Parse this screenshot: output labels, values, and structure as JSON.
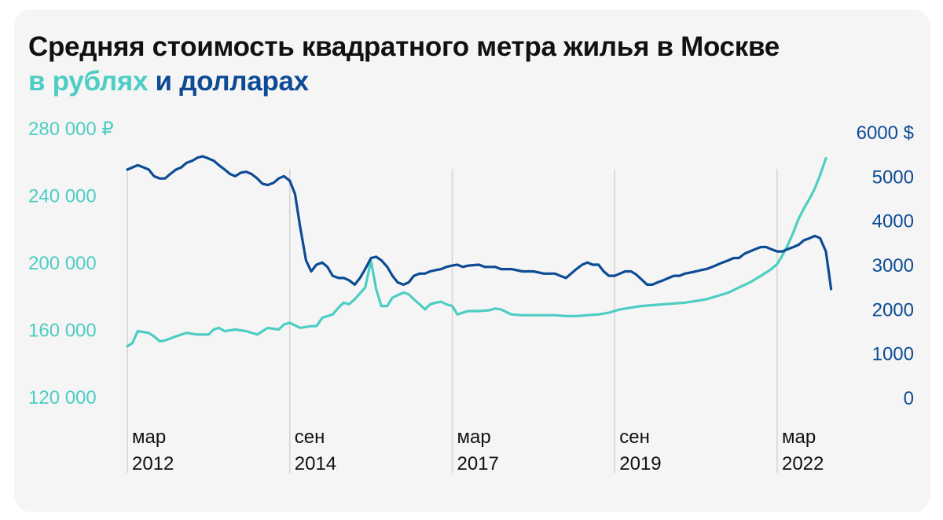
{
  "chart_data": {
    "type": "line",
    "title": "Средняя стоимость квадратного метра жилья в Москве",
    "subtitle": {
      "prefix": "в",
      "rub": "рублях",
      "and": "и",
      "usd": "долларах"
    },
    "xlabel": "",
    "ylabel_left": "",
    "ylabel_right": "",
    "x_ticks": [
      {
        "line1": "мар",
        "line2": "2012",
        "t": 2012.17
      },
      {
        "line1": "сен",
        "line2": "2014",
        "t": 2014.67
      },
      {
        "line1": "мар",
        "line2": "2017",
        "t": 2017.17
      },
      {
        "line1": "сен",
        "line2": "2019",
        "t": 2019.67
      },
      {
        "line1": "мар",
        "line2": "2022",
        "t": 2022.17
      }
    ],
    "y_left": {
      "ylim": [
        120000,
        280000
      ],
      "ticks": [
        {
          "value": 280000,
          "label": "280 000 ₽"
        },
        {
          "value": 240000,
          "label": "240 000"
        },
        {
          "value": 200000,
          "label": "200 000"
        },
        {
          "value": 160000,
          "label": "160 000"
        },
        {
          "value": 120000,
          "label": "120 000"
        }
      ]
    },
    "y_right": {
      "ylim": [
        0,
        6000
      ],
      "ticks": [
        {
          "value": 6000,
          "label": "6000 $"
        },
        {
          "value": 5000,
          "label": "5000"
        },
        {
          "value": 4000,
          "label": "4000"
        },
        {
          "value": 3000,
          "label": "3000"
        },
        {
          "value": 2000,
          "label": "2000"
        },
        {
          "value": 1000,
          "label": "1000"
        },
        {
          "value": 0,
          "label": "0"
        }
      ]
    },
    "grid": "vertical",
    "colors": {
      "rub": "#4ecdc4",
      "usd": "#0d4b94"
    },
    "series": [
      {
        "name": "рубли",
        "axis": "left",
        "points": [
          [
            2012.17,
            150000
          ],
          [
            2012.25,
            152000
          ],
          [
            2012.33,
            159000
          ],
          [
            2012.5,
            158000
          ],
          [
            2012.58,
            156000
          ],
          [
            2012.67,
            153000
          ],
          [
            2012.75,
            153500
          ],
          [
            2012.92,
            156000
          ],
          [
            2013.08,
            158000
          ],
          [
            2013.25,
            157000
          ],
          [
            2013.42,
            157000
          ],
          [
            2013.5,
            160000
          ],
          [
            2013.58,
            161000
          ],
          [
            2013.67,
            159000
          ],
          [
            2013.83,
            160000
          ],
          [
            2014.0,
            159000
          ],
          [
            2014.17,
            157000
          ],
          [
            2014.33,
            161000
          ],
          [
            2014.5,
            160000
          ],
          [
            2014.58,
            163000
          ],
          [
            2014.67,
            164000
          ],
          [
            2014.83,
            161000
          ],
          [
            2015.0,
            162000
          ],
          [
            2015.08,
            162000
          ],
          [
            2015.17,
            167000
          ],
          [
            2015.33,
            169000
          ],
          [
            2015.42,
            173000
          ],
          [
            2015.5,
            176000
          ],
          [
            2015.58,
            175000
          ],
          [
            2015.67,
            178000
          ],
          [
            2015.83,
            185000
          ],
          [
            2015.92,
            201000
          ],
          [
            2016.0,
            184000
          ],
          [
            2016.08,
            174000
          ],
          [
            2016.17,
            174000
          ],
          [
            2016.25,
            179000
          ],
          [
            2016.42,
            182000
          ],
          [
            2016.5,
            181000
          ],
          [
            2016.58,
            178000
          ],
          [
            2016.67,
            175000
          ],
          [
            2016.75,
            172000
          ],
          [
            2016.83,
            175000
          ],
          [
            2016.92,
            176000
          ],
          [
            2017.0,
            176500
          ],
          [
            2017.08,
            175000
          ],
          [
            2017.17,
            174000
          ],
          [
            2017.25,
            169000
          ],
          [
            2017.33,
            170000
          ],
          [
            2017.42,
            171000
          ],
          [
            2017.58,
            171000
          ],
          [
            2017.75,
            171500
          ],
          [
            2017.83,
            172500
          ],
          [
            2017.92,
            172000
          ],
          [
            2018.08,
            169000
          ],
          [
            2018.25,
            168500
          ],
          [
            2018.42,
            168500
          ],
          [
            2018.58,
            168500
          ],
          [
            2018.75,
            168500
          ],
          [
            2018.92,
            168000
          ],
          [
            2019.08,
            168000
          ],
          [
            2019.25,
            168500
          ],
          [
            2019.42,
            169000
          ],
          [
            2019.58,
            170000
          ],
          [
            2019.75,
            172000
          ],
          [
            2019.92,
            173000
          ],
          [
            2020.08,
            174000
          ],
          [
            2020.25,
            174500
          ],
          [
            2020.42,
            175000
          ],
          [
            2020.58,
            175500
          ],
          [
            2020.75,
            176000
          ],
          [
            2020.92,
            177000
          ],
          [
            2021.08,
            178000
          ],
          [
            2021.25,
            180000
          ],
          [
            2021.42,
            182000
          ],
          [
            2021.58,
            185000
          ],
          [
            2021.75,
            188000
          ],
          [
            2021.92,
            192000
          ],
          [
            2022.08,
            196000
          ],
          [
            2022.17,
            199000
          ],
          [
            2022.25,
            204000
          ],
          [
            2022.33,
            210000
          ],
          [
            2022.42,
            218000
          ],
          [
            2022.5,
            226000
          ],
          [
            2022.58,
            232000
          ],
          [
            2022.67,
            238000
          ],
          [
            2022.75,
            244000
          ],
          [
            2022.83,
            252000
          ],
          [
            2022.92,
            262000
          ]
        ]
      },
      {
        "name": "доллары",
        "axis": "right",
        "points": [
          [
            2012.17,
            5150
          ],
          [
            2012.25,
            5200
          ],
          [
            2012.33,
            5250
          ],
          [
            2012.42,
            5200
          ],
          [
            2012.5,
            5150
          ],
          [
            2012.58,
            5000
          ],
          [
            2012.67,
            4950
          ],
          [
            2012.75,
            4950
          ],
          [
            2012.83,
            5050
          ],
          [
            2012.92,
            5150
          ],
          [
            2013.0,
            5200
          ],
          [
            2013.08,
            5300
          ],
          [
            2013.17,
            5350
          ],
          [
            2013.25,
            5420
          ],
          [
            2013.33,
            5450
          ],
          [
            2013.42,
            5400
          ],
          [
            2013.5,
            5350
          ],
          [
            2013.58,
            5250
          ],
          [
            2013.67,
            5150
          ],
          [
            2013.75,
            5050
          ],
          [
            2013.83,
            5000
          ],
          [
            2013.92,
            5080
          ],
          [
            2014.0,
            5100
          ],
          [
            2014.08,
            5050
          ],
          [
            2014.17,
            4950
          ],
          [
            2014.25,
            4830
          ],
          [
            2014.33,
            4800
          ],
          [
            2014.42,
            4850
          ],
          [
            2014.5,
            4950
          ],
          [
            2014.58,
            5000
          ],
          [
            2014.67,
            4900
          ],
          [
            2014.75,
            4600
          ],
          [
            2014.83,
            3850
          ],
          [
            2014.92,
            3100
          ],
          [
            2015.0,
            2850
          ],
          [
            2015.08,
            3000
          ],
          [
            2015.17,
            3050
          ],
          [
            2015.25,
            2950
          ],
          [
            2015.33,
            2750
          ],
          [
            2015.42,
            2700
          ],
          [
            2015.5,
            2700
          ],
          [
            2015.58,
            2650
          ],
          [
            2015.67,
            2550
          ],
          [
            2015.75,
            2700
          ],
          [
            2015.83,
            2900
          ],
          [
            2015.92,
            3150
          ],
          [
            2016.0,
            3180
          ],
          [
            2016.08,
            3100
          ],
          [
            2016.17,
            2950
          ],
          [
            2016.25,
            2750
          ],
          [
            2016.33,
            2600
          ],
          [
            2016.42,
            2550
          ],
          [
            2016.5,
            2600
          ],
          [
            2016.58,
            2750
          ],
          [
            2016.67,
            2800
          ],
          [
            2016.75,
            2800
          ],
          [
            2016.83,
            2850
          ],
          [
            2016.92,
            2880
          ],
          [
            2017.0,
            2900
          ],
          [
            2017.08,
            2950
          ],
          [
            2017.17,
            2980
          ],
          [
            2017.25,
            3000
          ],
          [
            2017.33,
            2950
          ],
          [
            2017.42,
            2980
          ],
          [
            2017.58,
            3000
          ],
          [
            2017.67,
            2950
          ],
          [
            2017.83,
            2950
          ],
          [
            2017.92,
            2900
          ],
          [
            2018.08,
            2900
          ],
          [
            2018.25,
            2850
          ],
          [
            2018.42,
            2850
          ],
          [
            2018.58,
            2800
          ],
          [
            2018.75,
            2800
          ],
          [
            2018.83,
            2750
          ],
          [
            2018.92,
            2700
          ],
          [
            2019.0,
            2800
          ],
          [
            2019.08,
            2900
          ],
          [
            2019.17,
            3000
          ],
          [
            2019.25,
            3050
          ],
          [
            2019.33,
            3000
          ],
          [
            2019.42,
            3000
          ],
          [
            2019.5,
            2850
          ],
          [
            2019.58,
            2750
          ],
          [
            2019.67,
            2750
          ],
          [
            2019.75,
            2800
          ],
          [
            2019.83,
            2850
          ],
          [
            2019.92,
            2850
          ],
          [
            2020.0,
            2780
          ],
          [
            2020.17,
            2550
          ],
          [
            2020.25,
            2550
          ],
          [
            2020.33,
            2600
          ],
          [
            2020.42,
            2650
          ],
          [
            2020.5,
            2700
          ],
          [
            2020.58,
            2750
          ],
          [
            2020.67,
            2750
          ],
          [
            2020.75,
            2800
          ],
          [
            2020.83,
            2820
          ],
          [
            2020.92,
            2850
          ],
          [
            2021.0,
            2880
          ],
          [
            2021.08,
            2900
          ],
          [
            2021.17,
            2950
          ],
          [
            2021.25,
            3000
          ],
          [
            2021.33,
            3050
          ],
          [
            2021.42,
            3100
          ],
          [
            2021.5,
            3150
          ],
          [
            2021.58,
            3150
          ],
          [
            2021.67,
            3250
          ],
          [
            2021.75,
            3300
          ],
          [
            2021.83,
            3350
          ],
          [
            2021.92,
            3400
          ],
          [
            2022.0,
            3400
          ],
          [
            2022.08,
            3350
          ],
          [
            2022.17,
            3300
          ],
          [
            2022.25,
            3300
          ],
          [
            2022.33,
            3350
          ],
          [
            2022.42,
            3400
          ],
          [
            2022.5,
            3450
          ],
          [
            2022.58,
            3550
          ],
          [
            2022.67,
            3600
          ],
          [
            2022.75,
            3650
          ],
          [
            2022.83,
            3600
          ],
          [
            2022.92,
            3300
          ],
          [
            2023.0,
            2450
          ]
        ]
      }
    ]
  }
}
